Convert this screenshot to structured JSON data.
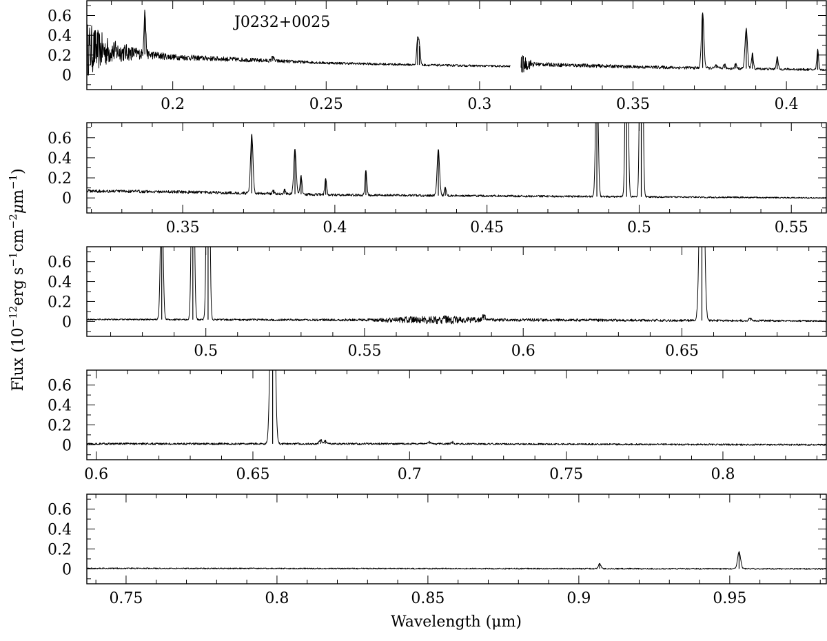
{
  "figure": {
    "ylabel_main": "Flux (10",
    "ylabel_exp1": "−12",
    "ylabel_mid1": "erg s",
    "ylabel_exp2": "−1",
    "ylabel_mid2": "cm",
    "ylabel_exp3": "−2",
    "ylabel_mu": "μ",
    "ylabel_mid3": "m",
    "ylabel_exp4": "−1",
    "ylabel_close": ")",
    "xlabel": "Wavelength (μm)"
  },
  "chart_data": [
    {
      "type": "line",
      "annotation": "J0232+0025",
      "xlim": [
        0.172,
        0.413
      ],
      "ylim": [
        -0.15,
        0.75
      ],
      "xticks": [
        {
          "v": 0.2,
          "t": "0.2"
        },
        {
          "v": 0.25,
          "t": "0.25"
        },
        {
          "v": 0.3,
          "t": "0.3"
        },
        {
          "v": 0.35,
          "t": "0.35"
        },
        {
          "v": 0.4,
          "t": "0.4"
        }
      ],
      "yticks": [
        {
          "v": 0,
          "t": "0"
        },
        {
          "v": 0.2,
          "t": "0.2"
        },
        {
          "v": 0.4,
          "t": "0.4"
        },
        {
          "v": 0.6,
          "t": "0.6"
        }
      ],
      "segments": [
        [
          0.172,
          0.31
        ],
        [
          0.3135,
          0.413
        ]
      ],
      "continuum": [
        [
          0.172,
          0.26
        ],
        [
          0.19,
          0.21
        ],
        [
          0.2,
          0.18
        ],
        [
          0.25,
          0.12
        ],
        [
          0.28,
          0.1
        ],
        [
          0.31,
          0.085
        ],
        [
          0.315,
          0.11
        ],
        [
          0.35,
          0.08
        ],
        [
          0.413,
          0.05
        ]
      ],
      "noise": [
        [
          0.172,
          0.28
        ],
        [
          0.18,
          0.12
        ],
        [
          0.19,
          0.05
        ],
        [
          0.2,
          0.03
        ],
        [
          0.25,
          0.012
        ],
        [
          0.31,
          0.01
        ],
        [
          0.3135,
          0.1
        ],
        [
          0.318,
          0.02
        ],
        [
          0.413,
          0.01
        ]
      ],
      "lines": [
        [
          0.1909,
          0.43,
          0.0003
        ],
        [
          0.2326,
          0.05,
          0.0003
        ],
        [
          0.2798,
          0.26,
          0.0003
        ],
        [
          0.2804,
          0.19,
          0.0003
        ],
        [
          0.3727,
          0.56,
          0.0004
        ],
        [
          0.3869,
          0.4,
          0.0004
        ],
        [
          0.3889,
          0.15,
          0.0003
        ],
        [
          0.397,
          0.12,
          0.0003
        ],
        [
          0.4102,
          0.2,
          0.0003
        ],
        [
          0.3835,
          0.05,
          0.0003
        ],
        [
          0.3798,
          0.04,
          0.0003
        ],
        [
          0.3771,
          0.03,
          0.0003
        ]
      ]
    },
    {
      "type": "line",
      "xlim": [
        0.3185,
        0.5615
      ],
      "ylim": [
        -0.15,
        0.75
      ],
      "xticks": [
        {
          "v": 0.35,
          "t": "0.35"
        },
        {
          "v": 0.4,
          "t": "0.4"
        },
        {
          "v": 0.45,
          "t": "0.45"
        },
        {
          "v": 0.5,
          "t": "0.5"
        },
        {
          "v": 0.55,
          "t": "0.55"
        }
      ],
      "yticks": [
        {
          "v": 0,
          "t": "0"
        },
        {
          "v": 0.2,
          "t": "0.2"
        },
        {
          "v": 0.4,
          "t": "0.4"
        },
        {
          "v": 0.6,
          "t": "0.6"
        }
      ],
      "segments": [
        [
          0.3185,
          0.5615
        ]
      ],
      "continuum": [
        [
          0.3185,
          0.07
        ],
        [
          0.35,
          0.06
        ],
        [
          0.4,
          0.03
        ],
        [
          0.45,
          0.02
        ],
        [
          0.5615,
          0.0
        ]
      ],
      "noise": [
        [
          0.3185,
          0.015
        ],
        [
          0.5615,
          0.006
        ]
      ],
      "lines": [
        [
          0.3727,
          0.58,
          0.0004
        ],
        [
          0.3869,
          0.45,
          0.0004
        ],
        [
          0.3889,
          0.18,
          0.0003
        ],
        [
          0.397,
          0.16,
          0.0003
        ],
        [
          0.4102,
          0.24,
          0.0003
        ],
        [
          0.434,
          0.46,
          0.0004
        ],
        [
          0.4363,
          0.08,
          0.0003
        ],
        [
          0.4861,
          1.4,
          0.0004
        ],
        [
          0.4959,
          2.5,
          0.0004
        ],
        [
          0.5007,
          4.0,
          0.0004
        ],
        [
          0.3835,
          0.04,
          0.0003
        ],
        [
          0.3798,
          0.03,
          0.0003
        ]
      ]
    },
    {
      "type": "line",
      "xlim": [
        0.4625,
        0.6955
      ],
      "ylim": [
        -0.15,
        0.75
      ],
      "xticks": [
        {
          "v": 0.5,
          "t": "0.5"
        },
        {
          "v": 0.55,
          "t": "0.55"
        },
        {
          "v": 0.6,
          "t": "0.6"
        },
        {
          "v": 0.65,
          "t": "0.65"
        }
      ],
      "yticks": [
        {
          "v": 0,
          "t": "0"
        },
        {
          "v": 0.2,
          "t": "0.2"
        },
        {
          "v": 0.4,
          "t": "0.4"
        },
        {
          "v": 0.6,
          "t": "0.6"
        }
      ],
      "segments": [
        [
          0.4625,
          0.6955
        ]
      ],
      "continuum": [
        [
          0.4625,
          0.02
        ],
        [
          0.55,
          0.015
        ],
        [
          0.6,
          0.015
        ],
        [
          0.6955,
          0.005
        ]
      ],
      "noise": [
        [
          0.4625,
          0.006
        ],
        [
          0.55,
          0.012
        ],
        [
          0.565,
          0.035
        ],
        [
          0.575,
          0.045
        ],
        [
          0.59,
          0.015
        ],
        [
          0.6955,
          0.008
        ]
      ],
      "lines": [
        [
          0.4861,
          1.4,
          0.0004
        ],
        [
          0.4959,
          2.5,
          0.0004
        ],
        [
          0.5007,
          4.0,
          0.0004
        ],
        [
          0.6563,
          3.0,
          0.0006
        ],
        [
          0.5876,
          0.05,
          0.0004
        ],
        [
          0.6716,
          0.03,
          0.0004
        ]
      ]
    },
    {
      "type": "line",
      "xlim": [
        0.597,
        0.833
      ],
      "ylim": [
        -0.15,
        0.75
      ],
      "xticks": [
        {
          "v": 0.6,
          "t": "0.6"
        },
        {
          "v": 0.65,
          "t": "0.65"
        },
        {
          "v": 0.7,
          "t": "0.7"
        },
        {
          "v": 0.75,
          "t": "0.75"
        },
        {
          "v": 0.8,
          "t": "0.8"
        }
      ],
      "yticks": [
        {
          "v": 0,
          "t": "0"
        },
        {
          "v": 0.2,
          "t": "0.2"
        },
        {
          "v": 0.4,
          "t": "0.4"
        },
        {
          "v": 0.6,
          "t": "0.6"
        }
      ],
      "segments": [
        [
          0.597,
          0.833
        ]
      ],
      "continuum": [
        [
          0.597,
          0.01
        ],
        [
          0.7,
          0.01
        ],
        [
          0.833,
          0.0
        ]
      ],
      "noise": [
        [
          0.597,
          0.01
        ],
        [
          0.833,
          0.008
        ]
      ],
      "lines": [
        [
          0.6563,
          3.0,
          0.0006
        ],
        [
          0.6716,
          0.04,
          0.0004
        ],
        [
          0.6731,
          0.03,
          0.0004
        ],
        [
          0.7065,
          0.02,
          0.0004
        ],
        [
          0.7136,
          0.02,
          0.0004
        ]
      ]
    },
    {
      "type": "line",
      "xlim": [
        0.737,
        0.982
      ],
      "ylim": [
        -0.15,
        0.75
      ],
      "xticks": [
        {
          "v": 0.75,
          "t": "0.75"
        },
        {
          "v": 0.8,
          "t": "0.8"
        },
        {
          "v": 0.85,
          "t": "0.85"
        },
        {
          "v": 0.9,
          "t": "0.9"
        },
        {
          "v": 0.95,
          "t": "0.95"
        }
      ],
      "yticks": [
        {
          "v": 0,
          "t": "0"
        },
        {
          "v": 0.2,
          "t": "0.2"
        },
        {
          "v": 0.4,
          "t": "0.4"
        },
        {
          "v": 0.6,
          "t": "0.6"
        }
      ],
      "segments": [
        [
          0.737,
          0.982
        ]
      ],
      "continuum": [
        [
          0.737,
          0.005
        ],
        [
          0.982,
          0.0
        ]
      ],
      "noise": [
        [
          0.737,
          0.006
        ],
        [
          0.982,
          0.006
        ]
      ],
      "lines": [
        [
          0.9069,
          0.05,
          0.0004
        ],
        [
          0.9531,
          0.17,
          0.0005
        ]
      ]
    }
  ]
}
